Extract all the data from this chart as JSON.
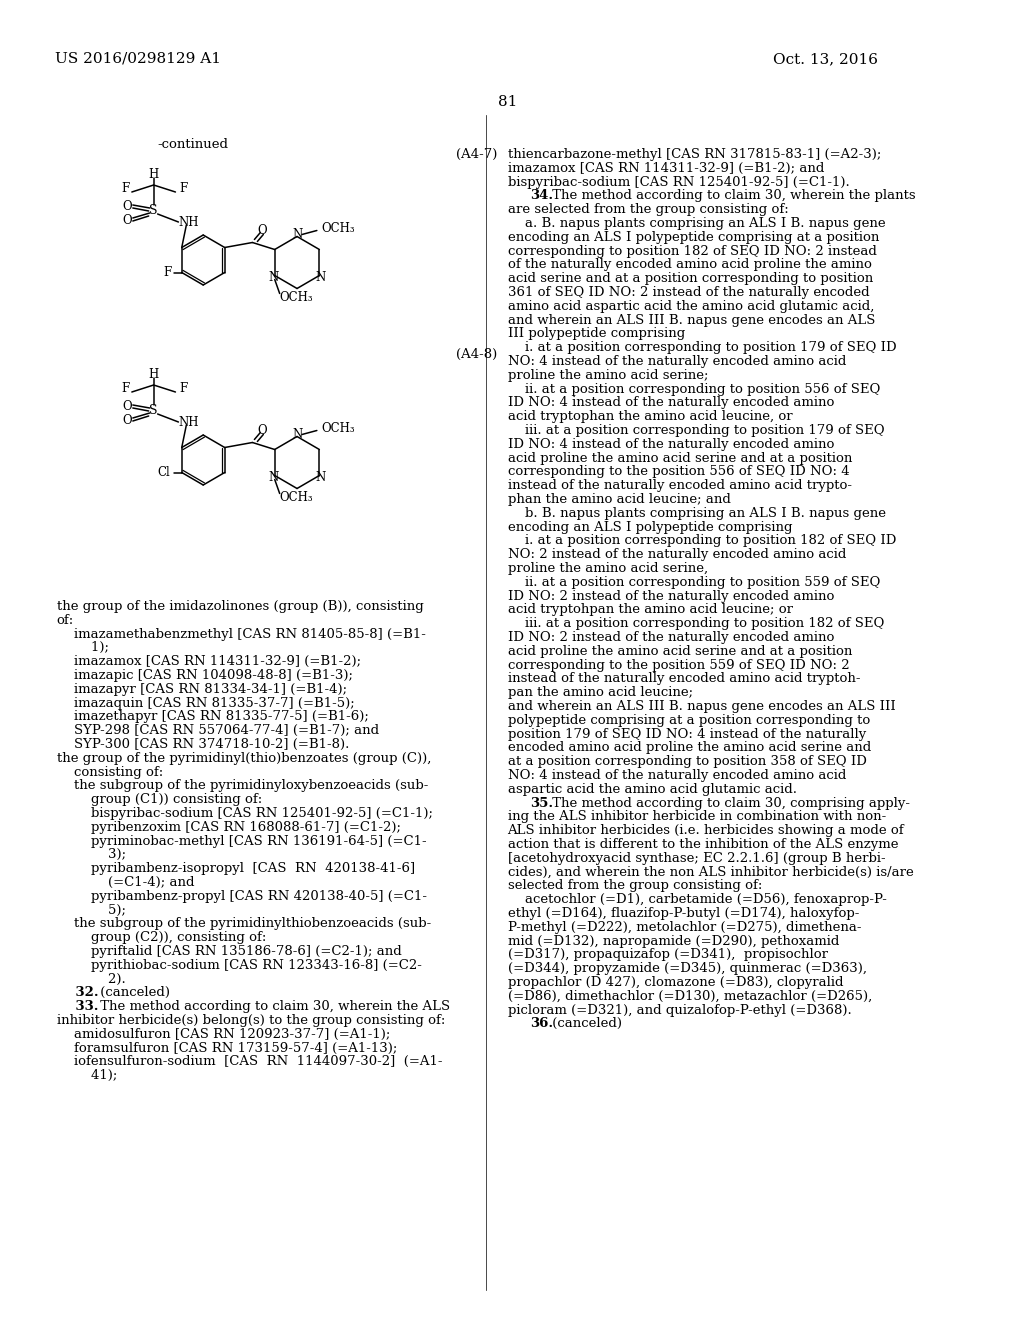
{
  "page_number": "81",
  "patent_number": "US 2016/0298129 A1",
  "patent_date": "Oct. 13, 2016",
  "background_color": "#ffffff",
  "text_color": "#000000",
  "font_size_header": 11,
  "font_size_body": 9.5,
  "font_size_page_num": 11,
  "continued_label": "-continued",
  "label_a47": "(A4-7)",
  "label_a48": "(A4-8)",
  "left_column_text": [
    "the group of the imidazolinones (group (B)), consisting",
    "of:",
    "    imazamethabenzmethyl [CAS RN 81405-85-8] (=B1-",
    "        1);",
    "    imazamox [CAS RN 114311-32-9] (=B1-2);",
    "    imazapic [CAS RN 104098-48-8] (=B1-3);",
    "    imazapyr [CAS RN 81334-34-1] (=B1-4);",
    "    imazaquin [CAS RN 81335-37-7] (=B1-5);",
    "    imazethapyr [CAS RN 81335-77-5] (=B1-6);",
    "    SYP-298 [CAS RN 557064-77-4] (=B1-7); and",
    "    SYP-300 [CAS RN 374718-10-2] (=B1-8).",
    "the group of the pyrimidinyl(thio)benzoates (group (C)),",
    "    consisting of:",
    "    the subgroup of the pyrimidinyloxybenzoeacids (sub-",
    "        group (C1)) consisting of:",
    "        bispyribac-sodium [CAS RN 125401-92-5] (=C1-1);",
    "        pyribenzoxim [CAS RN 168088-61-7] (=C1-2);",
    "        pyriminobac-methyl [CAS RN 136191-64-5] (=C1-",
    "            3);",
    "        pyribambenz-isopropyl  [CAS  RN  420138-41-6]",
    "            (=C1-4); and",
    "        pyribambenz-propyl [CAS RN 420138-40-5] (=C1-",
    "            5);",
    "    the subgroup of the pyrimidinylthiobenzoeacids (sub-",
    "        group (C2)), consisting of:",
    "        pyriftalid [CAS RN 135186-78-6] (=C2-1); and",
    "        pyrithiobac-sodium [CAS RN 123343-16-8] (=C2-",
    "            2).",
    "    32. (canceled)",
    "    33. The method according to claim 30, wherein the ALS",
    "inhibitor herbicide(s) belong(s) to the group consisting of:",
    "    amidosulfuron [CAS RN 120923-37-7] (=A1-1);",
    "    foramsulfuron [CAS RN 173159-57-4] (=A1-13);",
    "    iofensulfuron-sodium  [CAS  RN  1144097-30-2]  (=A1-",
    "        41);"
  ],
  "right_column_text": [
    "thiencarbazone-methyl [CAS RN 317815-83-1] (=A2-3);",
    "imazamox [CAS RN 114311-32-9] (=B1-2); and",
    "bispyribac-sodium [CAS RN 125401-92-5] (=C1-1).",
    "    34. The method according to claim 30, wherein the plants",
    "are selected from the group consisting of:",
    "    a. B. napus plants comprising an ALS I B. napus gene",
    "encoding an ALS I polypeptide comprising at a position",
    "corresponding to position 182 of SEQ ID NO: 2 instead",
    "of the naturally encoded amino acid proline the amino",
    "acid serine and at a position corresponding to position",
    "361 of SEQ ID NO: 2 instead of the naturally encoded",
    "amino acid aspartic acid the amino acid glutamic acid,",
    "and wherein an ALS III B. napus gene encodes an ALS",
    "III polypeptide comprising",
    "    i. at a position corresponding to position 179 of SEQ ID",
    "NO: 4 instead of the naturally encoded amino acid",
    "proline the amino acid serine;",
    "    ii. at a position corresponding to position 556 of SEQ",
    "ID NO: 4 instead of the naturally encoded amino",
    "acid tryptophan the amino acid leucine, or",
    "    iii. at a position corresponding to position 179 of SEQ",
    "ID NO: 4 instead of the naturally encoded amino",
    "acid proline the amino acid serine and at a position",
    "corresponding to the position 556 of SEQ ID NO: 4",
    "instead of the naturally encoded amino acid trypto-",
    "phan the amino acid leucine; and",
    "    b. B. napus plants comprising an ALS I B. napus gene",
    "encoding an ALS I polypeptide comprising",
    "    i. at a position corresponding to position 182 of SEQ ID",
    "NO: 2 instead of the naturally encoded amino acid",
    "proline the amino acid serine,",
    "    ii. at a position corresponding to position 559 of SEQ",
    "ID NO: 2 instead of the naturally encoded amino",
    "acid tryptohpan the amino acid leucine; or",
    "    iii. at a position corresponding to position 182 of SEQ",
    "ID NO: 2 instead of the naturally encoded amino",
    "acid proline the amino acid serine and at a position",
    "corresponding to the position 559 of SEQ ID NO: 2",
    "instead of the naturally encoded amino acid tryptoh-",
    "pan the amino acid leucine;",
    "and wherein an ALS III B. napus gene encodes an ALS III",
    "polypeptide comprising at a position corresponding to",
    "position 179 of SEQ ID NO: 4 instead of the naturally",
    "encoded amino acid proline the amino acid serine and",
    "at a position corresponding to position 358 of SEQ ID",
    "NO: 4 instead of the naturally encoded amino acid",
    "aspartic acid the amino acid glutamic acid.",
    "    35. The method according to claim 30, comprising apply-",
    "ing the ALS inhibitor herbicide in combination with non-",
    "ALS inhibitor herbicides (i.e. herbicides showing a mode of",
    "action that is different to the inhibition of the ALS enzyme",
    "[acetohydroxyacid synthase; EC 2.2.1.6] (group B herbi-",
    "cides), and wherein the non ALS inhibitor herbicide(s) is/are",
    "selected from the group consisting of:",
    "    acetochlor (=D1), carbetamide (=D56), fenoxaprop-P-",
    "ethyl (=D164), fluazifop-P-butyl (=D174), haloxyfop-",
    "P-methyl (=D222), metolachlor (=D275), dimethena-",
    "mid (=D132), napropamide (=D290), pethoxamid",
    "(=D317), propaquizafop (=D341),  propisochlor",
    "(=D344), propyzamide (=D345), quinmerac (=D363),",
    "propachlor (D 427), clomazone (=D83), clopyralid",
    "(=D86), dimethachlor (=D130), metazachlor (=D265),",
    "picloram (=D321), and quizalofop-P-ethyl (=D368).",
    "    36. (canceled)"
  ]
}
